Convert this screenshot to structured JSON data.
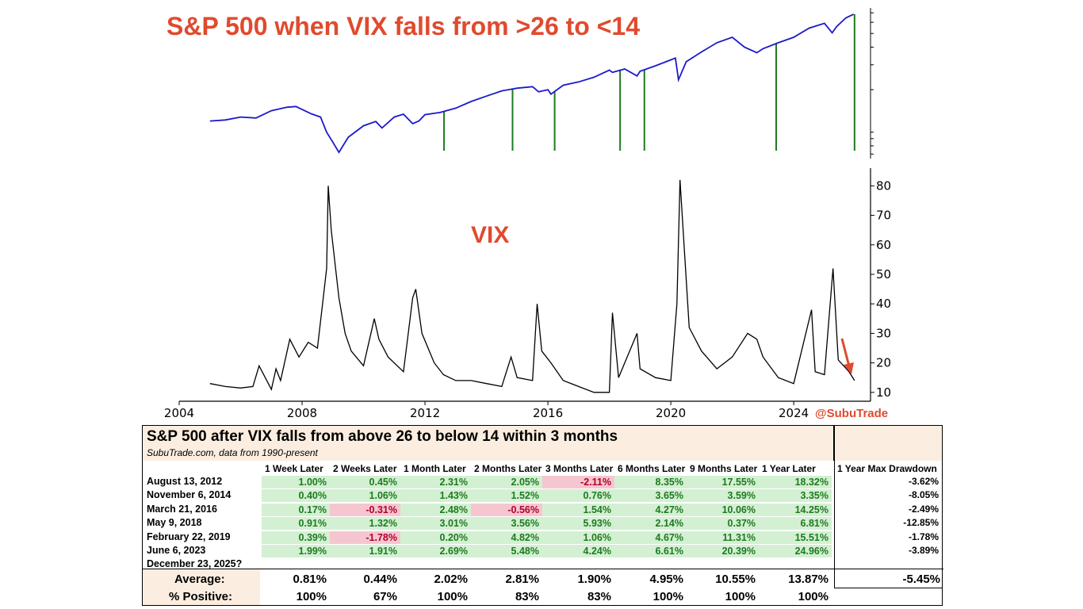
{
  "chart_data": [
    {
      "type": "line",
      "title": "S&P 500 when VIX falls from >26 to <14",
      "yscale": "log",
      "series": [
        {
          "color": "#1a1acc",
          "x": [
            2005.0,
            2005.5,
            2006.0,
            2006.5,
            2007.0,
            2007.5,
            2007.8,
            2008.3,
            2008.6,
            2008.8,
            2009.0,
            2009.2,
            2009.5,
            2010.0,
            2010.4,
            2010.6,
            2011.0,
            2011.3,
            2011.6,
            2011.8,
            2012.0,
            2012.5,
            2013.0,
            2013.5,
            2014.0,
            2014.5,
            2015.0,
            2015.5,
            2015.7,
            2016.0,
            2016.1,
            2016.5,
            2017.0,
            2017.5,
            2018.0,
            2018.1,
            2018.5,
            2018.9,
            2019.0,
            2019.5,
            2020.0,
            2020.15,
            2020.25,
            2020.5,
            2021.0,
            2021.5,
            2022.0,
            2022.4,
            2022.8,
            2023.0,
            2023.5,
            2024.0,
            2024.5,
            2025.0,
            2025.25,
            2025.4,
            2025.7,
            2025.95
          ],
          "y": [
            1200,
            1220,
            1280,
            1260,
            1420,
            1500,
            1520,
            1350,
            1280,
            1000,
            850,
            720,
            920,
            1110,
            1190,
            1070,
            1280,
            1340,
            1150,
            1200,
            1330,
            1380,
            1480,
            1650,
            1800,
            1960,
            2050,
            2100,
            1930,
            2000,
            1860,
            2150,
            2270,
            2450,
            2750,
            2650,
            2800,
            2500,
            2700,
            2950,
            3250,
            3350,
            2350,
            3150,
            3700,
            4300,
            4700,
            4000,
            3650,
            3900,
            4300,
            4700,
            5450,
            5900,
            5050,
            5600,
            6450,
            6850
          ]
        }
      ],
      "signal_dates": [
        2012.62,
        2014.85,
        2016.22,
        2018.35,
        2019.14,
        2023.43,
        2025.98
      ]
    },
    {
      "type": "line",
      "title": "VIX",
      "x_ticks": [
        "2004",
        "2008",
        "2012",
        "2016",
        "2020",
        "2024"
      ],
      "y_ticks": [
        "10",
        "20",
        "30",
        "40",
        "50",
        "60",
        "70",
        "80"
      ],
      "xlim": [
        2004,
        2026.5
      ],
      "ylim": [
        7,
        86
      ],
      "series": [
        {
          "color": "#000000",
          "x": [
            2005.0,
            2005.5,
            2006.0,
            2006.4,
            2006.6,
            2007.0,
            2007.15,
            2007.3,
            2007.6,
            2007.9,
            2008.2,
            2008.5,
            2008.8,
            2008.85,
            2008.95,
            2009.2,
            2009.4,
            2009.6,
            2010.0,
            2010.35,
            2010.5,
            2010.8,
            2011.3,
            2011.6,
            2011.7,
            2011.9,
            2012.3,
            2012.6,
            2013.0,
            2013.5,
            2014.0,
            2014.5,
            2014.8,
            2015.0,
            2015.5,
            2015.65,
            2015.8,
            2016.1,
            2016.5,
            2017.0,
            2017.5,
            2018.0,
            2018.1,
            2018.3,
            2018.9,
            2019.0,
            2019.5,
            2020.0,
            2020.2,
            2020.3,
            2020.6,
            2021.0,
            2021.5,
            2022.0,
            2022.5,
            2022.8,
            2023.0,
            2023.5,
            2024.0,
            2024.58,
            2024.7,
            2025.0,
            2025.28,
            2025.45,
            2025.8,
            2025.98
          ],
          "y": [
            13,
            12,
            11.5,
            12,
            19,
            11,
            18,
            14,
            28,
            22,
            27,
            25,
            52,
            80,
            65,
            42,
            30,
            24,
            19,
            35,
            28,
            22,
            17,
            42,
            45,
            30,
            20,
            16,
            14,
            14,
            13,
            12,
            22,
            15,
            14,
            40,
            24,
            20,
            14,
            12,
            10,
            10,
            37,
            15,
            30,
            18,
            15,
            14,
            40,
            82,
            32,
            24,
            18,
            22,
            30,
            28,
            22,
            15,
            13,
            38,
            17,
            16,
            52,
            21,
            17,
            14
          ]
        }
      ],
      "arrow_color": "#e04a2e",
      "watermark": "@SubuTrade"
    }
  ],
  "title_color": "#e04a2e",
  "table": {
    "title": "S&P 500 after VIX falls from above 26 to below 14 within 3 months",
    "subtitle": "SubuTrade.com, data from 1990-present",
    "columns": [
      "1 Week Later",
      "2 Weeks Later",
      "1 Month Later",
      "2 Months Later",
      "3 Months Later",
      "6 Months Later",
      "9 Months Later",
      "1 Year Later"
    ],
    "drawdown_header": "1 Year Max Drawdown",
    "rows": [
      {
        "date": "August 13, 2012",
        "values": [
          "1.00%",
          "0.45%",
          "2.31%",
          "2.05%",
          "-2.11%",
          "8.35%",
          "17.55%",
          "18.32%"
        ],
        "drawdown": "-3.62%"
      },
      {
        "date": "November 6, 2014",
        "values": [
          "0.40%",
          "1.06%",
          "1.43%",
          "1.52%",
          "0.76%",
          "3.65%",
          "3.59%",
          "3.35%"
        ],
        "drawdown": "-8.05%"
      },
      {
        "date": "March 21, 2016",
        "values": [
          "0.17%",
          "-0.31%",
          "2.48%",
          "-0.56%",
          "1.54%",
          "4.27%",
          "10.06%",
          "14.25%"
        ],
        "drawdown": "-2.49%"
      },
      {
        "date": "May 9, 2018",
        "values": [
          "0.91%",
          "1.32%",
          "3.01%",
          "3.56%",
          "5.93%",
          "2.14%",
          "0.37%",
          "6.81%"
        ],
        "drawdown": "-12.85%"
      },
      {
        "date": "February 22, 2019",
        "values": [
          "0.39%",
          "-1.78%",
          "0.20%",
          "4.82%",
          "1.06%",
          "4.67%",
          "11.31%",
          "15.51%"
        ],
        "drawdown": "-1.78%"
      },
      {
        "date": "June 6, 2023",
        "values": [
          "1.99%",
          "1.91%",
          "2.69%",
          "5.48%",
          "4.24%",
          "6.61%",
          "20.39%",
          "24.96%"
        ],
        "drawdown": "-3.89%"
      },
      {
        "date": "December 23, 2025?",
        "values": [
          "",
          "",
          "",
          "",
          "",
          "",
          "",
          ""
        ],
        "drawdown": ""
      }
    ],
    "average_label": "Average:",
    "average": [
      "0.81%",
      "0.44%",
      "2.02%",
      "2.81%",
      "1.90%",
      "4.95%",
      "10.55%",
      "13.87%"
    ],
    "average_drawdown": "-5.45%",
    "positive_label": "% Positive:",
    "positive": [
      "100%",
      "67%",
      "100%",
      "83%",
      "83%",
      "100%",
      "100%",
      "100%"
    ],
    "colors": {
      "positive_bg": "#d3f0d3",
      "negative_bg": "#f5c6cf",
      "positive_text": "#1e7a1e",
      "negative_text": "#b0002a",
      "header_bg": "#fbeee0"
    }
  }
}
